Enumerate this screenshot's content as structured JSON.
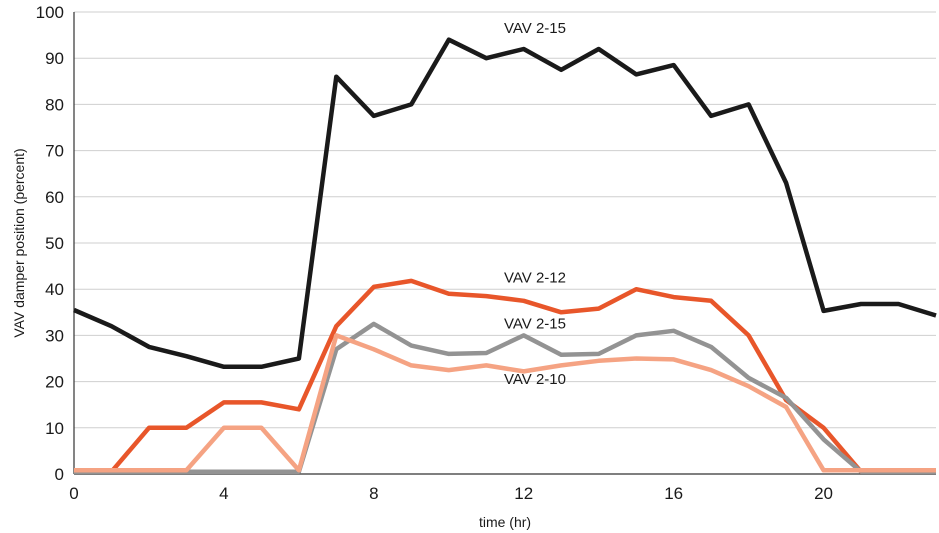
{
  "chart_data": {
    "type": "line",
    "xlabel": "time (hr)",
    "ylabel": "VAV damper position (percent)",
    "xlim": [
      0,
      23
    ],
    "ylim": [
      0,
      100
    ],
    "xticks": [
      0,
      4,
      8,
      12,
      16,
      20
    ],
    "yticks": [
      0,
      10,
      20,
      30,
      40,
      50,
      60,
      70,
      80,
      90,
      100
    ],
    "grid": "horizontal",
    "x": [
      0,
      1,
      2,
      3,
      4,
      5,
      6,
      7,
      8,
      9,
      10,
      11,
      12,
      13,
      14,
      15,
      16,
      17,
      18,
      19,
      20,
      21,
      22,
      23
    ],
    "series": [
      {
        "name": "VAV 2-15",
        "color": "#1a1a1a",
        "values": [
          35.5,
          32,
          27.5,
          25.5,
          23.2,
          23.2,
          25,
          86,
          77.5,
          80,
          94,
          90,
          92,
          87.5,
          92,
          86.5,
          88.5,
          77.5,
          80,
          63,
          35.3,
          36.8,
          36.8,
          34.3
        ],
        "label_at": {
          "x": 12.3,
          "y": 95.5
        }
      },
      {
        "name": "VAV 2-12",
        "color": "#e8562a",
        "values": [
          0.5,
          0.5,
          10,
          10,
          15.5,
          15.5,
          14,
          32,
          40.5,
          41.8,
          39,
          38.5,
          37.5,
          35,
          35.8,
          40,
          38.3,
          37.5,
          30,
          16,
          10,
          0.5,
          0.5,
          0.5
        ],
        "label_at": {
          "x": 12.3,
          "y": 41.5
        }
      },
      {
        "name": "VAV 2-15",
        "color": "#939393",
        "values": [
          0.5,
          0.5,
          0.5,
          0.5,
          0.5,
          0.5,
          0.5,
          27,
          32.5,
          27.8,
          26,
          26.2,
          30,
          25.8,
          26,
          30,
          31,
          27.5,
          20.8,
          16.5,
          7.5,
          0.5,
          0.5,
          0.5
        ],
        "label_at": {
          "x": 12.3,
          "y": 31.5
        }
      },
      {
        "name": "VAV 2-10",
        "color": "#f5a383",
        "values": [
          0.8,
          0.8,
          0.8,
          0.8,
          10,
          10,
          0.8,
          30,
          27,
          23.5,
          22.5,
          23.5,
          22.2,
          23.5,
          24.5,
          25,
          24.8,
          22.5,
          19,
          14.5,
          0.8,
          0.8,
          0.8,
          0.8
        ],
        "label_at": {
          "x": 12.3,
          "y": 19.5
        }
      }
    ]
  }
}
